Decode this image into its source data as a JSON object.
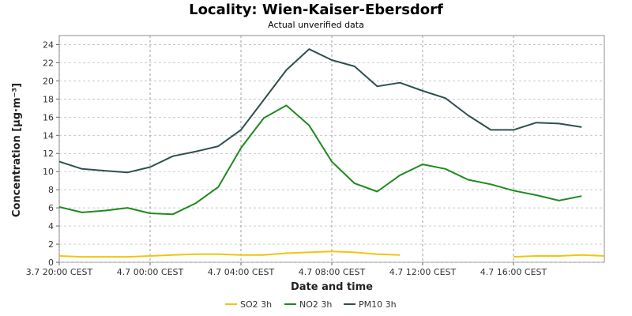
{
  "chart_data": {
    "type": "line",
    "title": "Locality: Wien-Kaiser-Ebersdorf",
    "subtitle": "Actual unverified data",
    "xlabel": "Date and time",
    "ylabel": "Concentration [µg·m⁻³]",
    "ylim": [
      0,
      25
    ],
    "yticks": [
      0,
      2,
      4,
      6,
      8,
      10,
      12,
      14,
      16,
      18,
      20,
      22,
      24
    ],
    "x_start": "3.7 20:00 CEST",
    "x_step_hours": 1,
    "xticks": [
      {
        "hour": 0,
        "label": "3.7 20:00 CEST"
      },
      {
        "hour": 4,
        "label": "4.7 00:00 CEST"
      },
      {
        "hour": 8,
        "label": "4.7 04:00 CEST"
      },
      {
        "hour": 12,
        "label": "4.7 08:00 CEST"
      },
      {
        "hour": 16,
        "label": "4.7 12:00 CEST"
      },
      {
        "hour": 20,
        "label": "4.7 16:00 CEST"
      }
    ],
    "grid": true,
    "legend_position": "bottom",
    "series": [
      {
        "name": "SO2 3h",
        "color": "#f2c40f",
        "values": [
          0.7,
          0.6,
          0.6,
          0.6,
          0.7,
          0.8,
          0.9,
          0.9,
          0.8,
          0.8,
          1.0,
          1.1,
          1.2,
          1.1,
          0.9,
          0.8,
          null,
          null,
          null,
          null,
          0.6,
          0.7,
          0.7,
          0.8,
          0.7
        ]
      },
      {
        "name": "NO2 3h",
        "color": "#1f8a1f",
        "values": [
          6.1,
          5.5,
          5.7,
          6.0,
          5.4,
          5.3,
          6.5,
          8.3,
          12.6,
          15.9,
          17.3,
          15.1,
          11.1,
          8.7,
          7.8,
          9.6,
          10.8,
          10.3,
          9.1,
          8.6,
          7.9,
          7.4,
          6.8,
          7.3
        ]
      },
      {
        "name": "PM10 3h",
        "color": "#2f4f4f",
        "values": [
          11.1,
          10.3,
          10.1,
          9.9,
          10.5,
          11.7,
          12.2,
          12.8,
          14.6,
          17.9,
          21.2,
          23.5,
          22.3,
          21.6,
          19.4,
          19.8,
          18.9,
          18.1,
          16.2,
          14.6,
          14.6,
          15.4,
          15.3,
          14.9
        ]
      }
    ]
  }
}
